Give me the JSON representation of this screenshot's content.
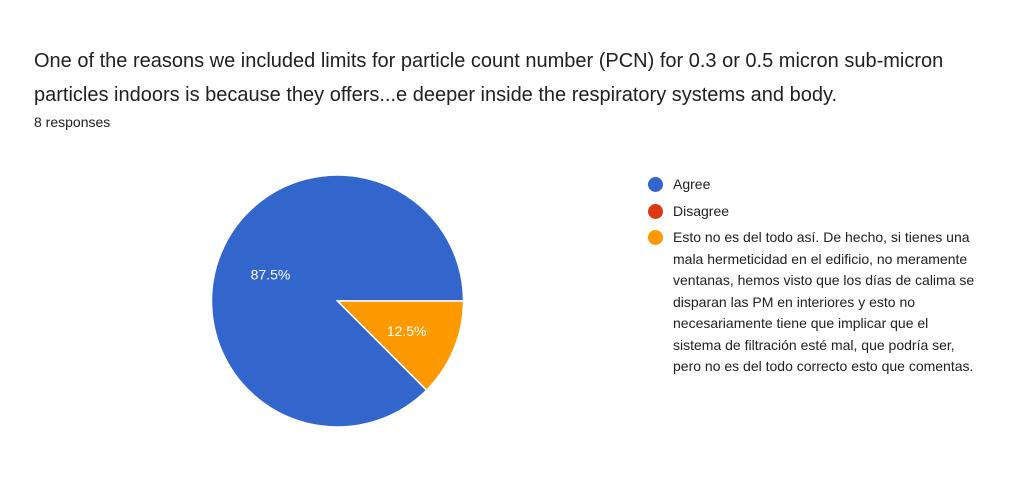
{
  "question": {
    "title": "One of the reasons we included limits for particle count number (PCN) for 0.3 or 0.5 micron sub-micron particles indoors is because they offers...e deeper inside the respiratory systems and body.",
    "responses": "8 responses"
  },
  "chart_data": {
    "type": "pie",
    "categories": [
      "Agree",
      "Disagree",
      "Esto no es del todo así. De hecho, si tienes una mala hermeticidad en el edificio, no meramente ventanas, hemos visto que los días de calima se disparan las PM en interiores y esto no necesariamente tiene que implicar que el sistema de filtración esté mal, que podría ser, pero no es del todo correcto esto que comentas."
    ],
    "values": [
      87.5,
      0,
      12.5
    ],
    "data_labels": [
      "87.5%",
      "",
      "12.5%"
    ],
    "colors": [
      "#3366cc",
      "#dc3912",
      "#ff9900"
    ],
    "legend_position": "right"
  }
}
